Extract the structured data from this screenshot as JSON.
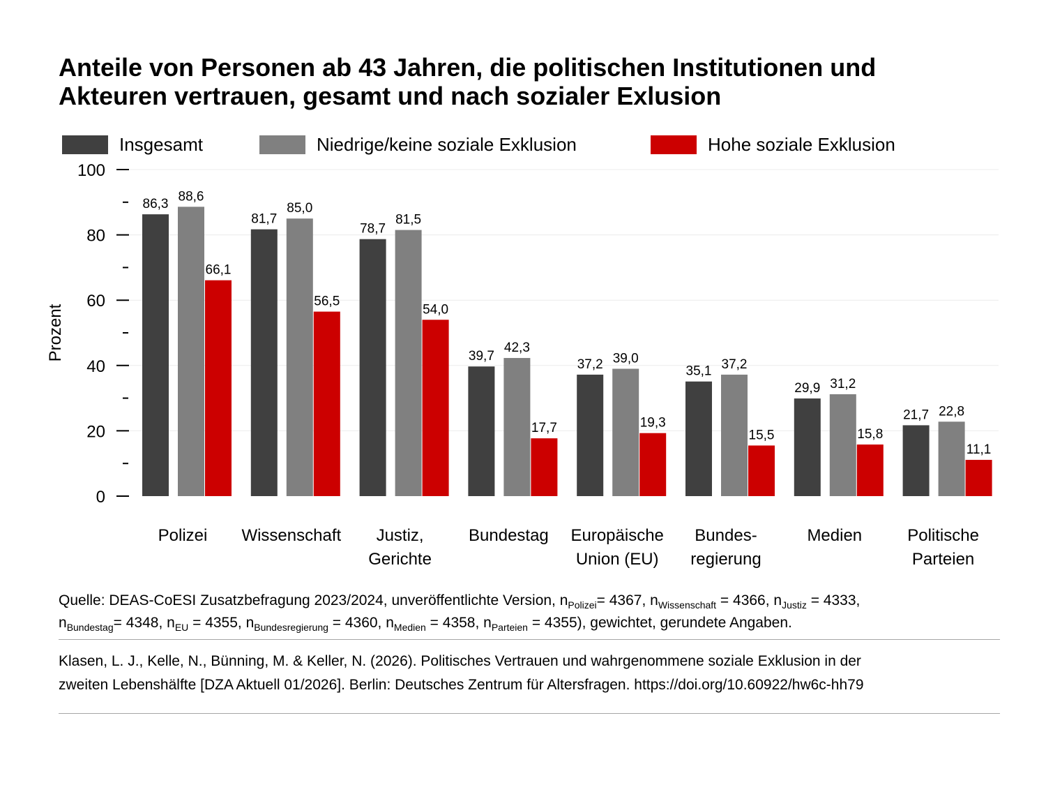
{
  "title": {
    "line1": "Anteile von Personen ab 43 Jahren, die politischen Institutionen und",
    "line2": "Akteuren vertrauen, gesamt und nach sozialer Exlusion"
  },
  "chart_data": {
    "type": "bar",
    "ylabel": "Prozent",
    "ylim": [
      0,
      100
    ],
    "yticks": [
      "0",
      "20",
      "40",
      "60",
      "80",
      "100"
    ],
    "grid": true,
    "legend_position": "top",
    "categories": [
      [
        "Polizei"
      ],
      [
        "Wissenschaft"
      ],
      [
        "Justiz,",
        "Gerichte"
      ],
      [
        "Bundestag"
      ],
      [
        "Europäische",
        "Union (EU)"
      ],
      [
        "Bundes-",
        "regierung"
      ],
      [
        "Medien"
      ],
      [
        "Politische",
        "Parteien"
      ]
    ],
    "series": [
      {
        "name": "Insgesamt",
        "color": "#404040",
        "values": [
          86.3,
          81.7,
          78.7,
          39.7,
          37.2,
          35.1,
          29.9,
          21.7
        ],
        "labels": [
          "86,3",
          "81,7",
          "78,7",
          "39,7",
          "37,2",
          "35,1",
          "29,9",
          "21,7"
        ]
      },
      {
        "name": "Niedrige/keine soziale Exklusion",
        "color": "#808080",
        "values": [
          88.6,
          85.0,
          81.5,
          42.3,
          39.0,
          37.2,
          31.2,
          22.8
        ],
        "labels": [
          "88,6",
          "85,0",
          "81,5",
          "42,3",
          "39,0",
          "37,2",
          "31,2",
          "22,8"
        ]
      },
      {
        "name": "Hohe soziale Exklusion",
        "color": "#cc0000",
        "values": [
          66.1,
          56.5,
          54.0,
          17.7,
          19.3,
          15.5,
          15.8,
          11.1
        ],
        "labels": [
          "66,1",
          "56,5",
          "54,0",
          "17,7",
          "19,3",
          "15,5",
          "15,8",
          "11,1"
        ]
      }
    ]
  },
  "source": {
    "line1": [
      {
        "t": "Quelle: DEAS-CoESI Zusatzbefragung 2023/2024, unveröffentlichte Version,  n"
      },
      {
        "s": "Polizei"
      },
      {
        "t": "= 4367, n"
      },
      {
        "s": "Wissenschaft"
      },
      {
        "t": " = 4366, n"
      },
      {
        "s": "Justiz"
      },
      {
        "t": " = 4333,"
      }
    ],
    "line2": [
      {
        "t": "n"
      },
      {
        "s": "Bundestag"
      },
      {
        "t": "= 4348, n"
      },
      {
        "s": "EU"
      },
      {
        "t": " = 4355, n"
      },
      {
        "s": "Bundesregierung"
      },
      {
        "t": " = 4360, n"
      },
      {
        "s": "Medien"
      },
      {
        "t": " = 4358, n"
      },
      {
        "s": "Parteien"
      },
      {
        "t": " = 4355), gewichtet, gerundete Angaben."
      }
    ]
  },
  "citation": {
    "line1": "Klasen, L. J., Kelle, N., Bünning, M. & Keller, N. (2026). Politisches Vertrauen und wahrgenommene soziale Exklusion in der",
    "line2": "zweiten Lebenshälfte [DZA Aktuell 01/2026]. Berlin: Deutsches Zentrum für Altersfragen. https://doi.org/10.60922/hw6c-hh79"
  }
}
